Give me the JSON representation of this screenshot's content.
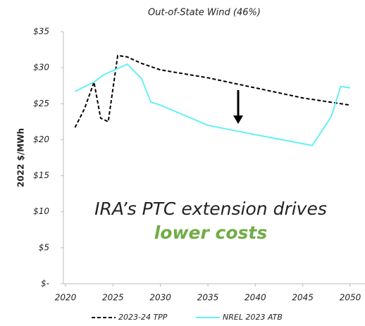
{
  "chart_data": {
    "type": "line",
    "title": "Out-of-State Wind (46%)",
    "ylabel": "2022 $/MWh",
    "annotation": [
      "IRA’s PTC extension drives",
      "lower costs"
    ],
    "xlim": [
      2020,
      2050
    ],
    "xticks": [
      2020,
      2025,
      2030,
      2035,
      2040,
      2045,
      2050
    ],
    "ylim": [
      0,
      35
    ],
    "yticks": [
      {
        "value": 0,
        "label": "$-"
      },
      {
        "value": 5,
        "label": "$5"
      },
      {
        "value": 10,
        "label": "$10"
      },
      {
        "value": 15,
        "label": "$15"
      },
      {
        "value": 20,
        "label": "$20"
      },
      {
        "value": 25,
        "label": "$25"
      },
      {
        "value": 30,
        "label": "$30"
      },
      {
        "value": 35,
        "label": "$35"
      }
    ],
    "grid": false,
    "legend": "bottom",
    "series": [
      {
        "name": "2023-24 TPP",
        "color": "#000000",
        "dash": true,
        "x": [
          2021,
          2022,
          2023,
          2023.7,
          2024.5,
          2025.5,
          2026.5,
          2028,
          2030,
          2035,
          2040,
          2045,
          2050
        ],
        "values": [
          21.7,
          24.3,
          28.0,
          23.0,
          22.5,
          31.7,
          31.5,
          30.6,
          29.7,
          28.6,
          27.2,
          25.8,
          24.8
        ]
      },
      {
        "name": "NREL 2023 ATB",
        "color": "#66f0f5",
        "dash": false,
        "x": [
          2021,
          2023,
          2024,
          2026.5,
          2028,
          2029,
          2030,
          2035,
          2040,
          2046,
          2048,
          2049,
          2050
        ],
        "values": [
          26.7,
          28.0,
          29.0,
          30.5,
          28.5,
          25.2,
          24.8,
          22.0,
          20.7,
          19.2,
          23.2,
          27.4,
          27.2
        ]
      }
    ]
  }
}
